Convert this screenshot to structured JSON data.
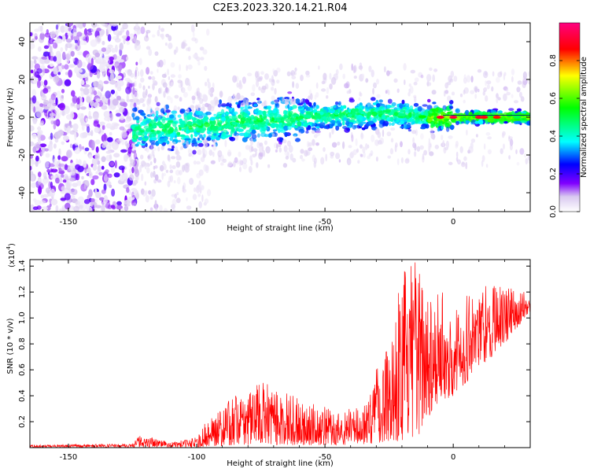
{
  "page_title": "C2E3.2023.320.14.21.R04",
  "chart_data": [
    {
      "type": "heatmap",
      "title": "C2E3.2023.320.14.21.R04",
      "xlabel": "Height of straight line (km)",
      "ylabel": "Frequency (Hz)",
      "xlim": [
        -165,
        30
      ],
      "ylim": [
        -50,
        50
      ],
      "xticks": [
        -150,
        -100,
        -50,
        0
      ],
      "yticks": [
        -40,
        -20,
        0,
        20,
        40
      ],
      "colorbar": {
        "label": "Normalized spectral amplitude",
        "range": [
          0,
          1
        ],
        "ticks": [
          0.0,
          0.2,
          0.4,
          0.6,
          0.8
        ],
        "colors": [
          "#ffffff",
          "#d8c8f0",
          "#8000ff",
          "#0000ff",
          "#00ffff",
          "#00ff00",
          "#ffff00",
          "#ff0000",
          "#ff00ff"
        ]
      },
      "ridge_center_hz": [
        {
          "x": -165,
          "y": -10
        },
        {
          "x": -150,
          "y": -10
        },
        {
          "x": -125,
          "y": -7
        },
        {
          "x": -100,
          "y": -5
        },
        {
          "x": -80,
          "y": -2
        },
        {
          "x": -50,
          "y": 1
        },
        {
          "x": -25,
          "y": 2
        },
        {
          "x": -10,
          "y": 0
        },
        {
          "x": 0,
          "y": 0
        },
        {
          "x": 15,
          "y": 0
        },
        {
          "x": 30,
          "y": 0
        }
      ]
    },
    {
      "type": "line",
      "xlabel": "Height of straight line (km)",
      "ylabel": "SNR (10 * v/v)",
      "y_multiplier": "(x10^4)",
      "xlim": [
        -165,
        30
      ],
      "ylim": [
        0,
        1.45
      ],
      "xticks": [
        -150,
        -100,
        -50,
        0
      ],
      "yticks": [
        0.2,
        0.4,
        0.6,
        0.8,
        1.0,
        1.2,
        1.4
      ],
      "series": [
        {
          "color": "#ff0000",
          "envelope": [
            {
              "x": -165,
              "lo": 0.0,
              "hi": 0.02
            },
            {
              "x": -125,
              "lo": 0.0,
              "hi": 0.03
            },
            {
              "x": -122,
              "lo": 0.0,
              "hi": 0.1
            },
            {
              "x": -110,
              "lo": 0.0,
              "hi": 0.04
            },
            {
              "x": -100,
              "lo": 0.0,
              "hi": 0.08
            },
            {
              "x": -95,
              "lo": 0.01,
              "hi": 0.25
            },
            {
              "x": -85,
              "lo": 0.02,
              "hi": 0.4
            },
            {
              "x": -75,
              "lo": 0.02,
              "hi": 0.52
            },
            {
              "x": -60,
              "lo": 0.02,
              "hi": 0.38
            },
            {
              "x": -45,
              "lo": 0.02,
              "hi": 0.28
            },
            {
              "x": -35,
              "lo": 0.02,
              "hi": 0.35
            },
            {
              "x": -25,
              "lo": 0.05,
              "hi": 0.9
            },
            {
              "x": -20,
              "lo": 0.05,
              "hi": 1.38
            },
            {
              "x": -13,
              "lo": 0.1,
              "hi": 1.45
            },
            {
              "x": -8,
              "lo": 0.3,
              "hi": 1.3
            },
            {
              "x": 0,
              "lo": 0.4,
              "hi": 1.1
            },
            {
              "x": 10,
              "lo": 0.6,
              "hi": 1.3
            },
            {
              "x": 20,
              "lo": 0.8,
              "hi": 1.25
            },
            {
              "x": 30,
              "lo": 1.05,
              "hi": 1.2
            }
          ]
        }
      ]
    }
  ]
}
